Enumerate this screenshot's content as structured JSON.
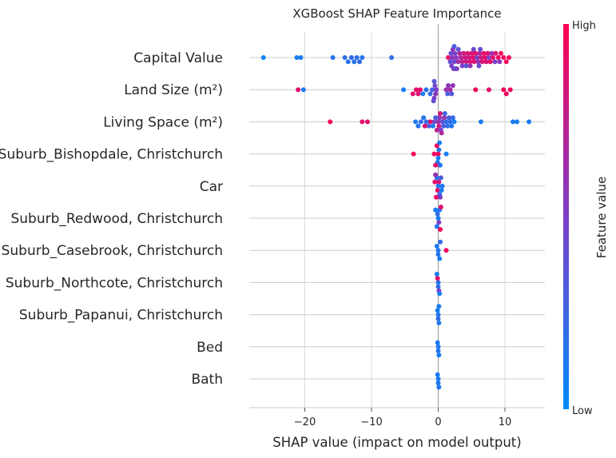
{
  "chart_data": {
    "type": "scatter",
    "subtype": "shap-beeswarm",
    "title": "XGBoost SHAP Feature Importance",
    "xlabel": "SHAP value (impact on model output)",
    "xlim": [
      -28,
      15.5
    ],
    "xticks": [
      -20,
      -10,
      0,
      10
    ],
    "xtick_labels": [
      "−20",
      "−10",
      "0",
      "10"
    ],
    "grid": true,
    "colorbar": {
      "title": "Feature value",
      "high_label": "High",
      "low_label": "Low",
      "low_color": "#008bfb",
      "mid_color": "#7c3fc8",
      "high_color": "#ff0052"
    },
    "features": [
      {
        "name": "Capital Value",
        "points": [
          [
            -26.2,
            0.05
          ],
          [
            -21.2,
            0.1
          ],
          [
            -20.6,
            0.1
          ],
          [
            -15.8,
            0.15
          ],
          [
            -14.0,
            0.2
          ],
          [
            -13.5,
            0.15
          ],
          [
            -13.0,
            0.2
          ],
          [
            -12.6,
            0.15
          ],
          [
            -12.2,
            0.2
          ],
          [
            -11.8,
            0.2
          ],
          [
            -11.4,
            0.15
          ],
          [
            -7.0,
            0.2
          ],
          [
            1.8,
            0.4
          ],
          [
            2.0,
            0.5
          ],
          [
            2.1,
            0.55
          ],
          [
            2.2,
            0.6
          ],
          [
            2.3,
            0.5
          ],
          [
            2.4,
            0.45
          ],
          [
            2.5,
            0.5
          ],
          [
            2.6,
            0.6
          ],
          [
            2.7,
            0.55
          ],
          [
            2.8,
            0.5
          ],
          [
            3.0,
            0.65
          ],
          [
            3.2,
            0.7
          ],
          [
            3.4,
            0.7
          ],
          [
            3.6,
            0.75
          ],
          [
            3.8,
            0.8
          ],
          [
            4.0,
            0.8
          ],
          [
            4.2,
            0.8
          ],
          [
            4.4,
            0.85
          ],
          [
            4.6,
            0.8
          ],
          [
            4.8,
            0.85
          ],
          [
            5.0,
            0.85
          ],
          [
            5.2,
            0.9
          ],
          [
            5.4,
            0.85
          ],
          [
            5.6,
            0.9
          ],
          [
            5.8,
            0.5
          ],
          [
            6.0,
            0.6
          ],
          [
            6.2,
            0.7
          ],
          [
            6.4,
            0.8
          ],
          [
            6.6,
            0.85
          ],
          [
            6.8,
            0.9
          ],
          [
            7.0,
            0.9
          ],
          [
            7.2,
            0.85
          ],
          [
            7.4,
            0.9
          ],
          [
            7.8,
            0.9
          ],
          [
            8.2,
            0.9
          ],
          [
            8.6,
            0.85
          ],
          [
            9.0,
            0.95
          ],
          [
            9.4,
            0.95
          ],
          [
            9.8,
            0.95
          ],
          [
            10.2,
            0.95
          ],
          [
            10.6,
            0.95
          ],
          [
            1.5,
            0.9
          ],
          [
            1.9,
            0.4
          ],
          [
            2.4,
            0.3
          ],
          [
            3.0,
            0.35
          ],
          [
            4.2,
            0.35
          ],
          [
            5.3,
            0.45
          ],
          [
            6.1,
            0.45
          ],
          [
            6.3,
            0.4
          ],
          [
            8.0,
            0.6
          ],
          [
            8.5,
            0.5
          ],
          [
            9.2,
            0.55
          ],
          [
            2.6,
            0.3
          ],
          [
            3.6,
            0.5
          ],
          [
            4.8,
            0.6
          ],
          [
            7.6,
            0.5
          ]
        ]
      },
      {
        "name": "Land Size (m²)",
        "points": [
          [
            -21.0,
            0.9
          ],
          [
            -20.2,
            0.1
          ],
          [
            -5.2,
            0.1
          ],
          [
            -3.8,
            0.9
          ],
          [
            -3.3,
            0.9
          ],
          [
            -3.0,
            0.85
          ],
          [
            -2.7,
            0.9
          ],
          [
            -2.3,
            0.1
          ],
          [
            -1.8,
            0.15
          ],
          [
            -1.2,
            0.2
          ],
          [
            -0.9,
            0.3
          ],
          [
            -0.7,
            0.4
          ],
          [
            -0.6,
            0.5
          ],
          [
            -0.5,
            0.45
          ],
          [
            -0.3,
            0.5
          ],
          [
            -0.4,
            0.55
          ],
          [
            -0.6,
            0.35
          ],
          [
            1.2,
            0.6
          ],
          [
            1.5,
            0.55
          ],
          [
            1.8,
            0.65
          ],
          [
            2.2,
            0.6
          ],
          [
            5.6,
            0.95
          ],
          [
            7.6,
            0.9
          ],
          [
            9.8,
            0.95
          ],
          [
            10.2,
            0.95
          ],
          [
            10.8,
            0.95
          ],
          [
            1.4,
            0.3
          ],
          [
            2.0,
            0.35
          ]
        ]
      },
      {
        "name": "Living Space (m²)",
        "points": [
          [
            -16.2,
            0.95
          ],
          [
            -11.4,
            0.9
          ],
          [
            -10.6,
            0.9
          ],
          [
            -3.4,
            0.1
          ],
          [
            -3.0,
            0.15
          ],
          [
            -2.6,
            0.2
          ],
          [
            -2.2,
            0.15
          ],
          [
            -1.8,
            0.2
          ],
          [
            -1.4,
            0.3
          ],
          [
            -1.2,
            0.9
          ],
          [
            -0.8,
            0.1
          ],
          [
            -0.4,
            0.3
          ],
          [
            0.0,
            0.6
          ],
          [
            0.2,
            0.55
          ],
          [
            0.4,
            0.5
          ],
          [
            0.6,
            0.4
          ],
          [
            0.8,
            0.3
          ],
          [
            1.0,
            0.25
          ],
          [
            1.2,
            0.2
          ],
          [
            1.4,
            0.2
          ],
          [
            1.6,
            0.3
          ],
          [
            1.8,
            0.2
          ],
          [
            2.0,
            0.15
          ],
          [
            2.2,
            0.2
          ],
          [
            2.4,
            0.1
          ],
          [
            6.4,
            0.1
          ],
          [
            11.2,
            0.1
          ],
          [
            11.8,
            0.1
          ],
          [
            13.6,
            0.1
          ],
          [
            0.1,
            0.8
          ],
          [
            0.3,
            0.85
          ],
          [
            0.5,
            0.7
          ],
          [
            -0.2,
            0.75
          ],
          [
            0.9,
            0.6
          ],
          [
            -0.6,
            0.45
          ],
          [
            -2.0,
            0.85
          ]
        ]
      },
      {
        "name": "Suburb_Bishopdale, Christchurch",
        "points": [
          [
            -3.7,
            0.95
          ],
          [
            -0.6,
            0.95
          ],
          [
            -0.4,
            0.9
          ],
          [
            -0.2,
            0.95
          ],
          [
            0.0,
            0.95
          ],
          [
            0.2,
            0.9
          ],
          [
            0.0,
            0.1
          ],
          [
            0.2,
            0.1
          ],
          [
            0.1,
            0.15
          ],
          [
            -0.1,
            0.1
          ],
          [
            1.2,
            0.1
          ],
          [
            0.3,
            0.12
          ]
        ]
      },
      {
        "name": "Car",
        "points": [
          [
            -0.5,
            0.9
          ],
          [
            -0.3,
            0.95
          ],
          [
            -0.1,
            0.9
          ],
          [
            0.1,
            0.8
          ],
          [
            0.3,
            0.5
          ],
          [
            0.4,
            0.3
          ],
          [
            0.2,
            0.2
          ],
          [
            0.0,
            0.1
          ],
          [
            -0.2,
            0.15
          ],
          [
            0.5,
            0.1
          ],
          [
            0.6,
            0.12
          ],
          [
            -0.4,
            0.6
          ]
        ]
      },
      {
        "name": "Suburb_Redwood, Christchurch",
        "points": [
          [
            -0.4,
            0.1
          ],
          [
            -0.2,
            0.15
          ],
          [
            0.0,
            0.1
          ],
          [
            0.2,
            0.12
          ],
          [
            0.4,
            0.9
          ],
          [
            0.3,
            0.95
          ],
          [
            0.1,
            0.5
          ],
          [
            -0.1,
            0.2
          ]
        ]
      },
      {
        "name": "Suburb_Casebrook, Christchurch",
        "points": [
          [
            -0.2,
            0.1
          ],
          [
            0.0,
            0.12
          ],
          [
            0.2,
            0.1
          ],
          [
            0.0,
            0.15
          ],
          [
            1.2,
            0.95
          ],
          [
            0.3,
            0.2
          ]
        ]
      },
      {
        "name": "Suburb_Northcote, Christchurch",
        "points": [
          [
            -0.2,
            0.1
          ],
          [
            0.0,
            0.15
          ],
          [
            0.2,
            0.1
          ],
          [
            -0.1,
            0.9
          ],
          [
            0.1,
            0.5
          ],
          [
            0.0,
            0.2
          ]
        ]
      },
      {
        "name": "Suburb_Papanui, Christchurch",
        "points": [
          [
            -0.1,
            0.1
          ],
          [
            0.1,
            0.12
          ],
          [
            0.0,
            0.15
          ],
          [
            0.0,
            0.2
          ],
          [
            0.1,
            0.1
          ]
        ]
      },
      {
        "name": "Bed",
        "points": [
          [
            -0.1,
            0.1
          ],
          [
            0.0,
            0.12
          ],
          [
            0.1,
            0.1
          ],
          [
            0.0,
            0.15
          ]
        ]
      },
      {
        "name": "Bath",
        "points": [
          [
            -0.1,
            0.1
          ],
          [
            0.0,
            0.1
          ],
          [
            0.1,
            0.12
          ],
          [
            0.0,
            0.15
          ]
        ]
      }
    ]
  }
}
